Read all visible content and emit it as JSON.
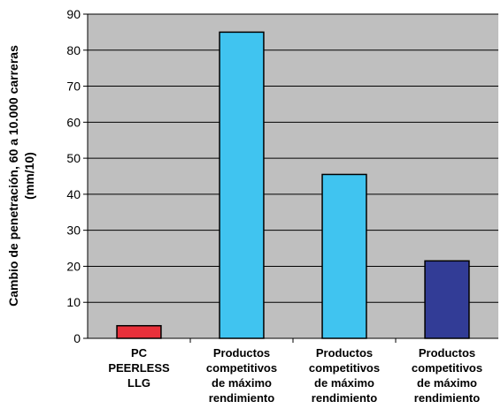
{
  "chart_data": {
    "type": "bar",
    "title": "",
    "ylabel_lines": [
      "Cambio de penetración, 60 a 10.000 carreras",
      "(mm/10)"
    ],
    "xlabel": "",
    "ylim": [
      0,
      90
    ],
    "y_ticks": [
      "0",
      "10",
      "20",
      "30",
      "40",
      "50",
      "60",
      "70",
      "80",
      "90"
    ],
    "grid": true,
    "plot_background": "#bfbfbf",
    "categories": [
      {
        "lines": [
          "PC",
          "PEERLESS",
          "LLG"
        ]
      },
      {
        "lines": [
          "Productos",
          "competitivos",
          "de máximo",
          "rendimiento"
        ]
      },
      {
        "lines": [
          "Productos",
          "competitivos",
          "de máximo",
          "rendimiento"
        ]
      },
      {
        "lines": [
          "Productos",
          "competitivos",
          "de máximo",
          "rendimiento"
        ]
      }
    ],
    "values": [
      3.5,
      85,
      45.5,
      21.5
    ],
    "colors": [
      "#e8303a",
      "#40c4f0",
      "#40c4f0",
      "#323c96"
    ]
  }
}
